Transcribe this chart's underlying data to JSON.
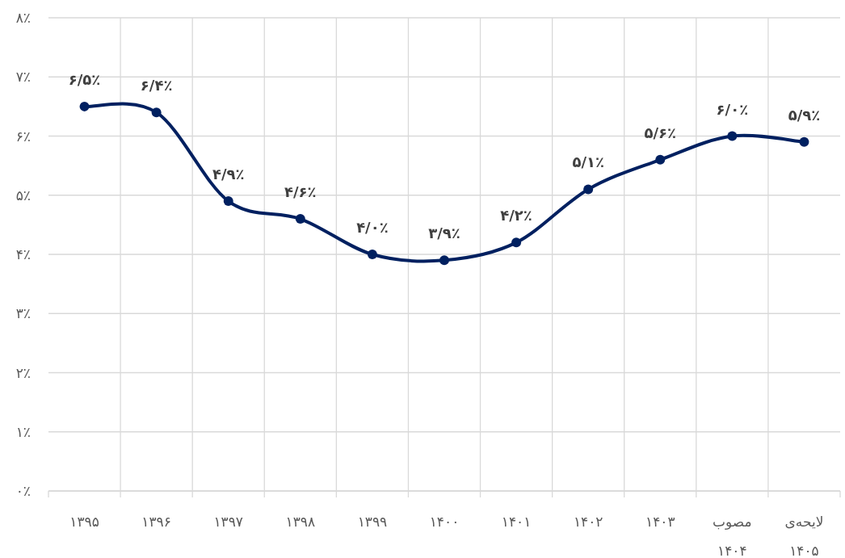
{
  "chart_data": {
    "type": "line",
    "categories": [
      "۱۳۹۵",
      "۱۳۹۶",
      "۱۳۹۷",
      "۱۳۹۸",
      "۱۳۹۹",
      "۱۴۰۰",
      "۱۴۰۱",
      "۱۴۰۲",
      "۱۴۰۳",
      "مصوب\n۱۴۰۴",
      "لایحه‌ی\n۱۴۰۵"
    ],
    "series": [
      {
        "color": "#002060",
        "values": [
          6.5,
          6.4,
          4.9,
          4.6,
          4.0,
          3.9,
          4.2,
          5.1,
          5.6,
          6.0,
          5.9
        ],
        "value_labels": [
          "۶/۵٪",
          "۶/۴٪",
          "۴/۹٪",
          "۴/۶٪",
          "۴/۰٪",
          "۳/۹٪",
          "۴/۲٪",
          "۵/۱٪",
          "۵/۶٪",
          "۶/۰٪",
          "۵/۹٪"
        ]
      }
    ],
    "ylim": [
      0,
      8
    ],
    "yticks": [
      {
        "value": 0,
        "label": "۰٪"
      },
      {
        "value": 1,
        "label": "۱٪"
      },
      {
        "value": 2,
        "label": "۲٪"
      },
      {
        "value": 3,
        "label": "۳٪"
      },
      {
        "value": 4,
        "label": "۴٪"
      },
      {
        "value": 5,
        "label": "۵٪"
      },
      {
        "value": 6,
        "label": "۶٪"
      },
      {
        "value": 7,
        "label": "۷٪"
      },
      {
        "value": 8,
        "label": "۸٪"
      }
    ],
    "grid": true,
    "marker": "circle",
    "line_style": "solid"
  }
}
